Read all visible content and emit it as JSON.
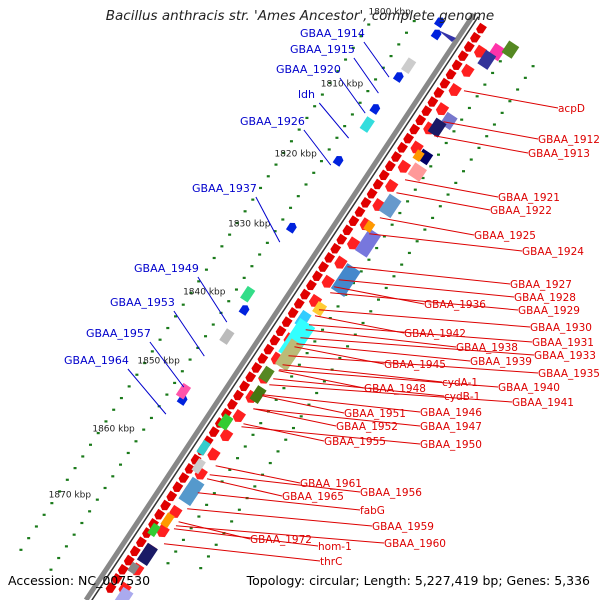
{
  "title": "Bacillus anthracis str. 'Ames Ancestor', complete genome",
  "footer": {
    "accession": "Accession: NC_007530",
    "summary": "Topology: circular; Length: 5,227,419 bp; Genes: 5,336"
  },
  "colors": {
    "left_labels": "#0000cc",
    "right_labels": "#dd0000",
    "backbone": "#888888",
    "tick": "#1a7a1a"
  },
  "ticks": [
    {
      "label": "1800 kbp"
    },
    {
      "label": "1810 kbp"
    },
    {
      "label": "1820 kbp"
    },
    {
      "label": "1830 kbp"
    },
    {
      "label": "1840 kbp"
    },
    {
      "label": "1850 kbp"
    },
    {
      "label": "1860 kbp"
    },
    {
      "label": "1870 kbp"
    }
  ],
  "left_labels": [
    "GBAA_1914",
    "GBAA_1915",
    "GBAA_1920",
    "ldh",
    "GBAA_1926",
    "GBAA_1937",
    "GBAA_1949",
    "GBAA_1953",
    "GBAA_1957",
    "GBAA_1964"
  ],
  "right_labels": [
    "acpD",
    "GBAA_1912",
    "GBAA_1913",
    "GBAA_1921",
    "GBAA_1922",
    "GBAA_1925",
    "GBAA_1924",
    "GBAA_1927",
    "GBAA_1928",
    "GBAA_1929",
    "GBAA_1936",
    "GBAA_1930",
    "GBAA_1931",
    "GBAA_1942",
    "GBAA_1938",
    "GBAA_1933",
    "GBAA_1939",
    "GBAA_1945",
    "GBAA_1935",
    "cydA-1",
    "GBAA_1940",
    "GBAA_1948",
    "cydB-1",
    "GBAA_1941",
    "GBAA_1946",
    "GBAA_1951",
    "GBAA_1952",
    "GBAA_1947",
    "GBAA_1955",
    "GBAA_1950",
    "GBAA_1961",
    "GBAA_1956",
    "GBAA_1965",
    "fabG",
    "GBAA_1959",
    "GBAA_1972",
    "hom-1",
    "GBAA_1960",
    "thrC"
  ]
}
